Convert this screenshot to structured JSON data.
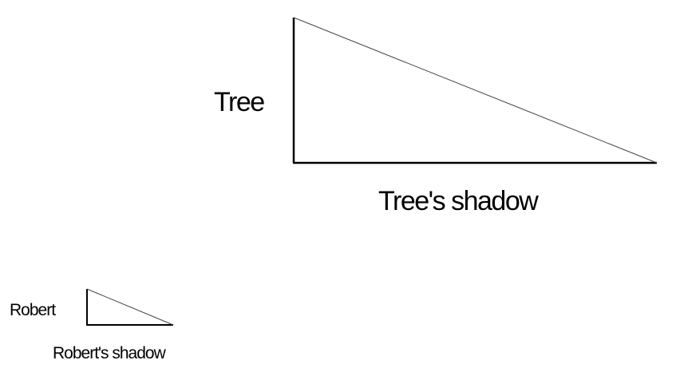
{
  "labels": {
    "tree": "Tree",
    "tree_shadow": "Tree's shadow",
    "robert": "Robert",
    "robert_shadow": "Robert's shadow"
  },
  "colors": {
    "stroke": "#000000",
    "hypotenuse": "#444444",
    "background": "#ffffff"
  }
}
